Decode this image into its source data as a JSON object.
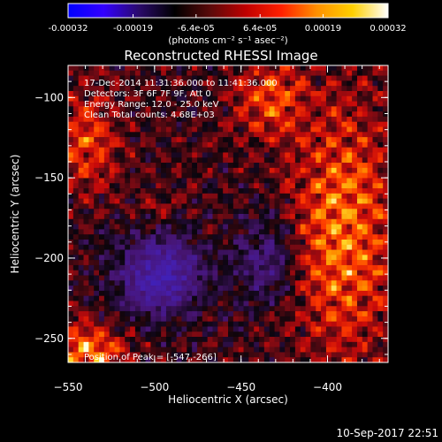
{
  "colorbar": {
    "ticks": [
      "-0.00032",
      "-0.00019",
      "-6.4e-05",
      "6.4e-05",
      "0.00019",
      "0.00032"
    ],
    "tick_values": [
      -0.00032,
      -0.00019,
      -6.4e-05,
      6.4e-05,
      0.00019,
      0.00032
    ],
    "unit_label": "(photons cm⁻² s⁻¹ asec⁻²)",
    "colors": [
      "#0000ff",
      "#3300ff",
      "#2a0a6a",
      "#000000",
      "#5a0a0a",
      "#c00000",
      "#ff2000",
      "#ff9000",
      "#ffd000",
      "#ffffff"
    ]
  },
  "chart_data": {
    "type": "heatmap",
    "title": "Reconstructed RHESSI Image",
    "xlabel": "Heliocentric X (arcsec)",
    "ylabel": "Heliocentric Y (arcsec)",
    "xlim": [
      -550,
      -365
    ],
    "ylim": [
      -265,
      -80
    ],
    "xticks": [
      -550,
      -500,
      -450,
      -400
    ],
    "xtick_labels": [
      "−550",
      "−500",
      "−450",
      "−400"
    ],
    "yticks": [
      -100,
      -150,
      -200,
      -250
    ],
    "ytick_labels": [
      "−100",
      "−150",
      "−200",
      "−250"
    ],
    "info_lines": [
      "17-Dec-2014 11:31:36.000 to 11:41:36.000",
      "Detectors: 3F 6F 7F 9F, Att 0",
      "Energy Range: 12.0 - 25.0 keV",
      "Clean     Total counts: 4.68E+03"
    ],
    "peak_text": "Position of Peak = [-547,-266]",
    "peak": [
      -547,
      -266
    ]
  },
  "footer": {
    "timestamp": "10-Sep-2017 22:51"
  }
}
